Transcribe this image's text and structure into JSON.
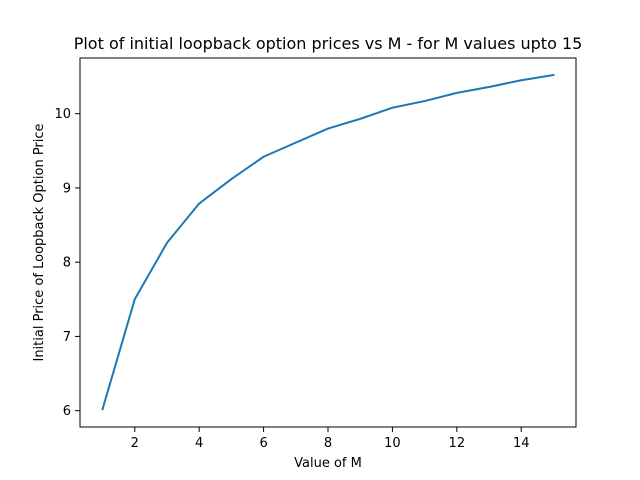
{
  "chart_data": {
    "type": "line",
    "title": "Plot of initial loopback option prices vs M - for M values upto 15",
    "xlabel": "Value of M",
    "ylabel": "Initial Price of Loopback Option Price",
    "xlim": [
      0.3,
      15.7
    ],
    "ylim": [
      5.78,
      10.75
    ],
    "xticks": [
      2,
      4,
      6,
      8,
      10,
      12,
      14
    ],
    "yticks": [
      6,
      7,
      8,
      9,
      10
    ],
    "grid": false,
    "series": [
      {
        "color": "#1f77b4",
        "x": [
          1,
          2,
          3,
          4,
          5,
          6,
          7,
          8,
          9,
          10,
          11,
          12,
          13,
          14,
          15
        ],
        "y": [
          6.02,
          7.5,
          8.26,
          8.79,
          9.12,
          9.42,
          9.61,
          9.8,
          9.93,
          10.08,
          10.17,
          10.28,
          10.36,
          10.45,
          10.52
        ]
      }
    ]
  }
}
